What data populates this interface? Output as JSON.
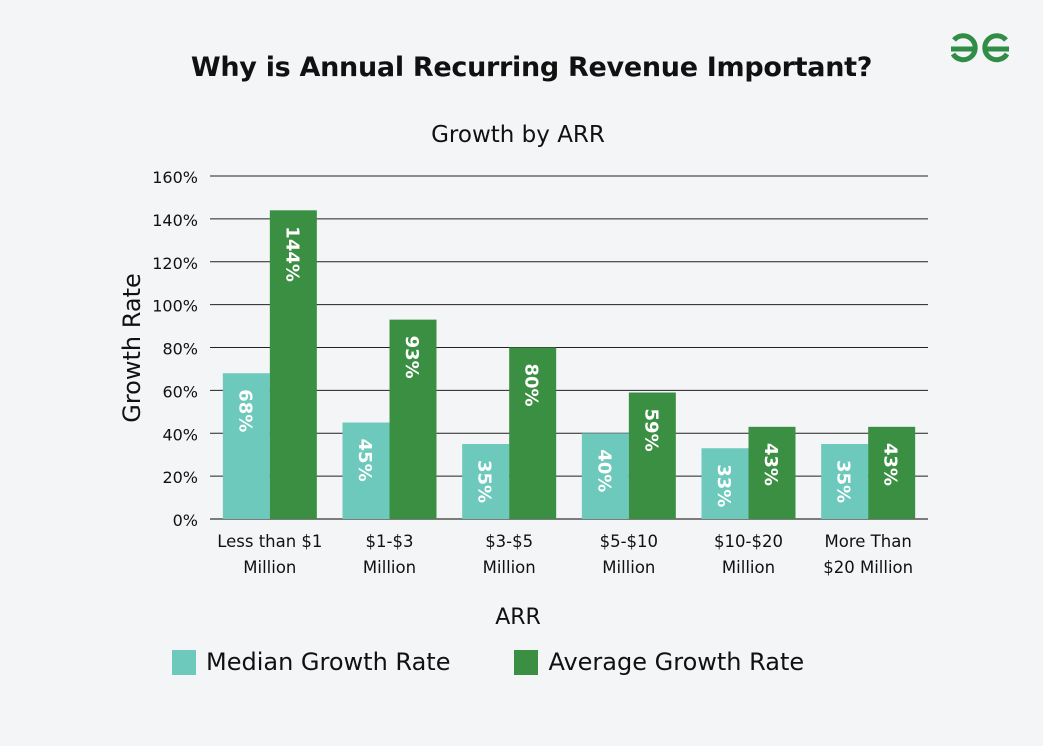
{
  "page": {
    "title": "Why is Annual Recurring Revenue Important?",
    "logo_icon": "geeksforgeeks-logo-icon",
    "colors": {
      "background": "#f4f5f7",
      "logo": "#2f8d46"
    }
  },
  "chart_data": {
    "type": "bar",
    "title": "Growth by ARR",
    "xlabel": "ARR",
    "ylabel": "Growth Rate",
    "ylim": [
      0,
      160
    ],
    "yticks": [
      0,
      20,
      40,
      60,
      80,
      100,
      120,
      140,
      160
    ],
    "ytick_labels": [
      "0%",
      "20%",
      "40%",
      "60%",
      "80%",
      "100%",
      "120%",
      "140%",
      "160%"
    ],
    "grid": true,
    "legend_position": "bottom",
    "categories": [
      [
        "Less than $1",
        "Million"
      ],
      [
        "$1-$3",
        "Million"
      ],
      [
        "$3-$5",
        "Million"
      ],
      [
        "$5-$10",
        "Million"
      ],
      [
        "$10-$20",
        "Million"
      ],
      [
        "More Than",
        "$20 Million"
      ]
    ],
    "series": [
      {
        "name": "Median Growth Rate",
        "color": "#6dc9bb",
        "values": [
          68,
          45,
          35,
          40,
          33,
          35
        ],
        "labels": [
          "68%",
          "45%",
          "35%",
          "40%",
          "33%",
          "35%"
        ]
      },
      {
        "name": "Average Growth Rate",
        "color": "#3b8f42",
        "values": [
          144,
          93,
          80,
          59,
          43,
          43
        ],
        "labels": [
          "144%",
          "93%",
          "80%",
          "59%",
          "43%",
          "43%"
        ]
      }
    ]
  }
}
